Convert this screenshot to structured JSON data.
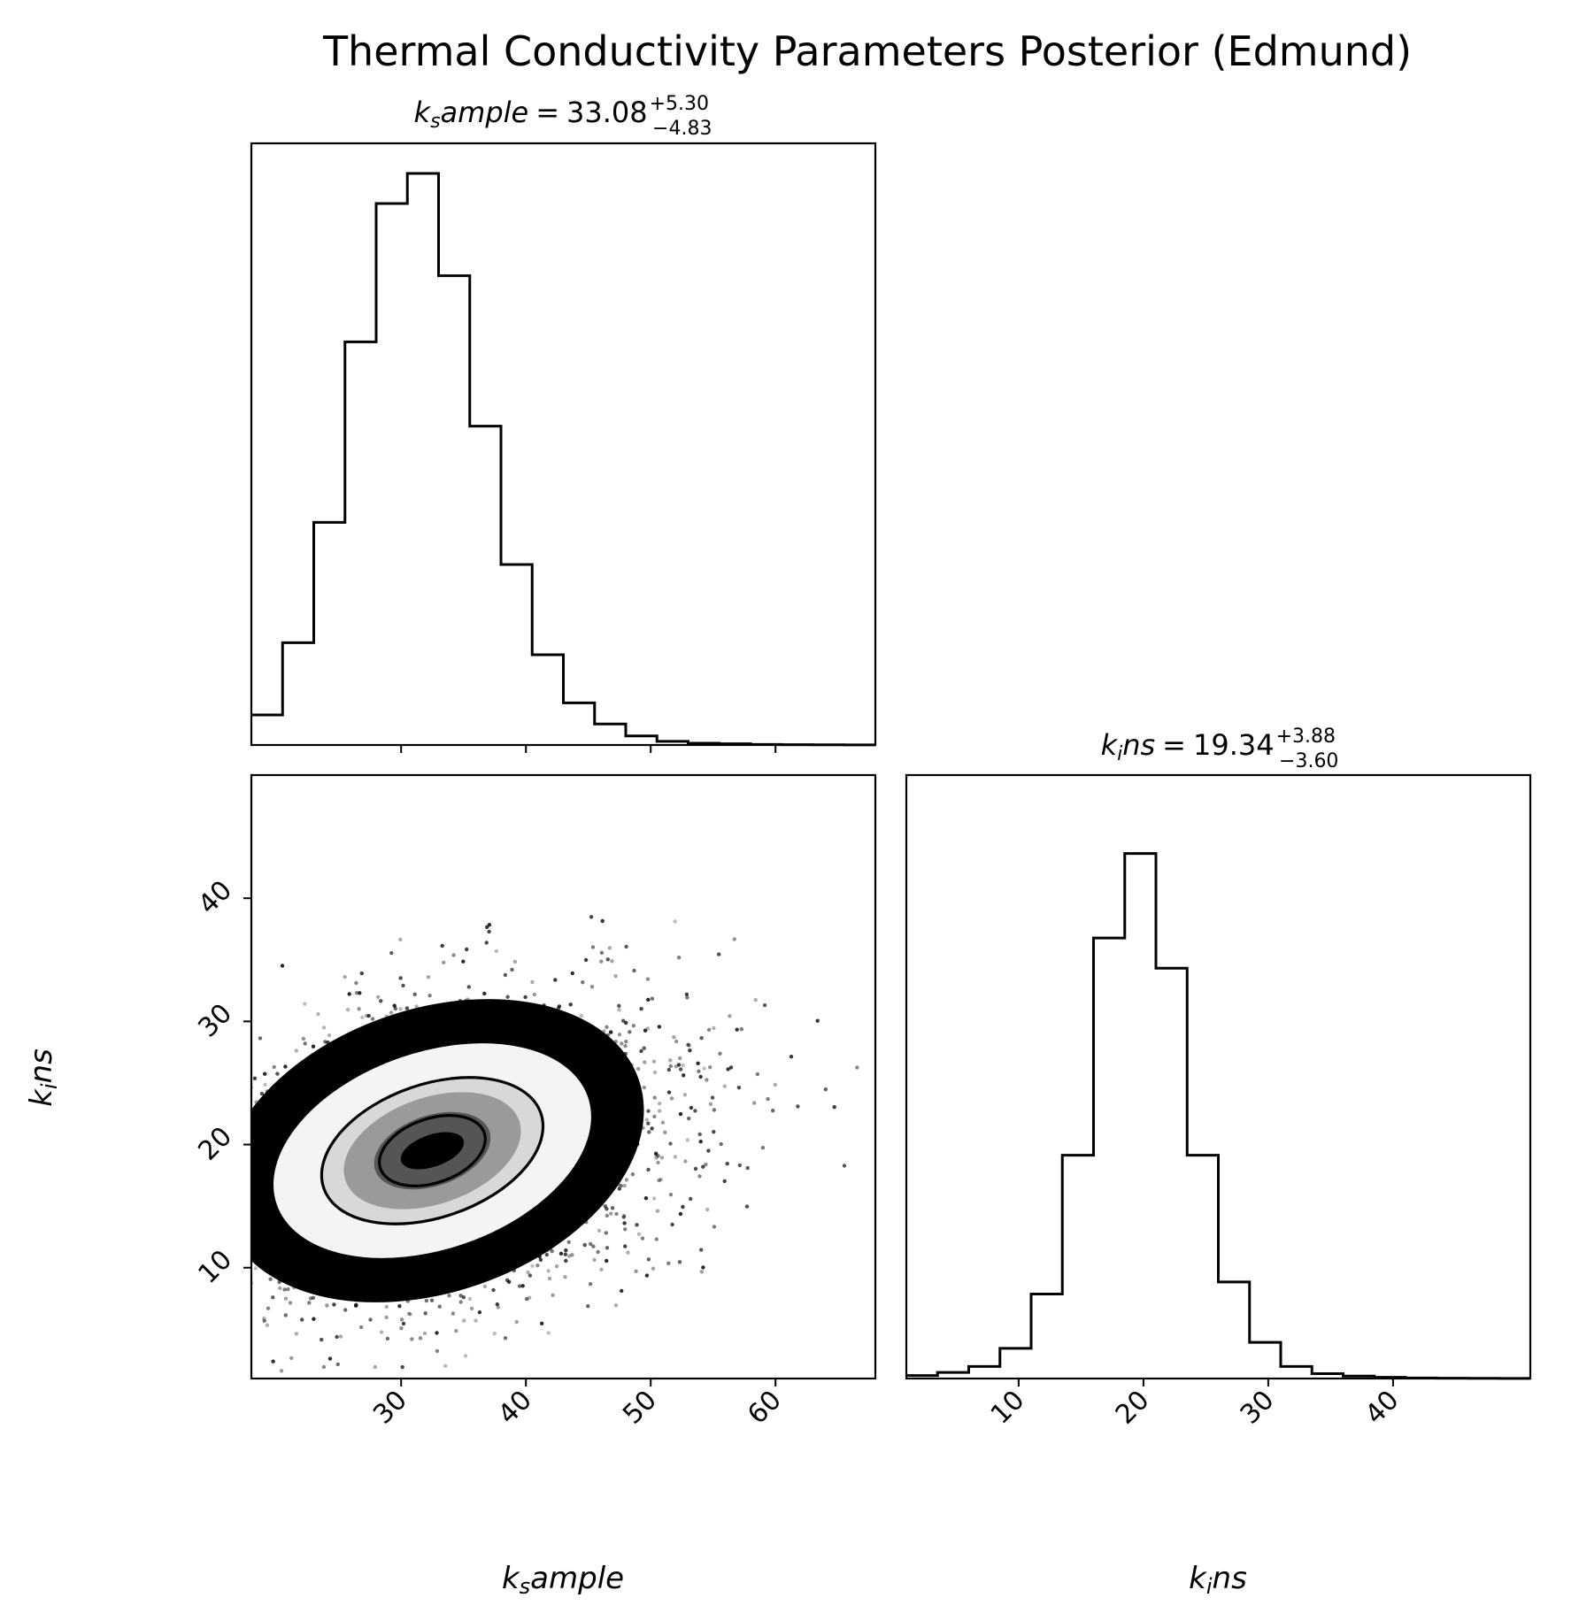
{
  "figure": {
    "title": "Thermal Conductivity Parameters Posterior (Edmund)"
  },
  "chart_data": [
    {
      "type": "bar",
      "panel": "histogram",
      "parameter": "k_sample",
      "title": {
        "main": "k",
        "sub": "s",
        "rest": "ample",
        "equals": "=",
        "value": "33.08",
        "plus": "+5.30",
        "minus": "−4.83"
      },
      "bin_edges": [
        18.0,
        20.5,
        23.0,
        25.5,
        28.0,
        30.5,
        33.0,
        35.5,
        38.0,
        40.5,
        43.0,
        45.5,
        48.0,
        50.5,
        53.0,
        55.5,
        58.0,
        60.5,
        63.0,
        65.5,
        68.0
      ],
      "counts": [
        5,
        17,
        37,
        67,
        90,
        95,
        78,
        53,
        30,
        15,
        7,
        3.5,
        1.5,
        0.6,
        0.3,
        0.2,
        0.1,
        0.05,
        0.03,
        0.02
      ],
      "xlim": [
        18.0,
        68.0
      ],
      "ylim": [
        0,
        100
      ],
      "xticks": [
        30,
        40,
        50,
        60
      ]
    },
    {
      "type": "scatter",
      "panel": "2d-density",
      "parameters": [
        "k_sample",
        "k_ins"
      ],
      "xlabel": {
        "main": "k",
        "sub": "s",
        "rest": "ample"
      },
      "ylabel": {
        "main": "k",
        "sub": "i",
        "rest": "ns"
      },
      "xlim": [
        18.0,
        68.0
      ],
      "ylim": [
        1.0,
        50.0
      ],
      "xticks": [
        "30",
        "40",
        "50",
        "60"
      ],
      "yticks": [
        "10",
        "20",
        "30",
        "40"
      ],
      "peak": [
        32.5,
        19.5
      ],
      "contour_levels_sigma": [
        0.5,
        1.0,
        1.5
      ],
      "contour_radii": [
        [
          4.4,
          2.6
        ],
        [
          9.2,
          5.4
        ],
        [
          13.3,
          8.1
        ]
      ],
      "contour_tilt": [
        1.0,
        0.35
      ],
      "colors": {
        "dense": "#000000",
        "mid": "#555555",
        "light": "#d8d8d8"
      }
    },
    {
      "type": "bar",
      "panel": "histogram",
      "parameter": "k_ins",
      "title": {
        "main": "k",
        "sub": "i",
        "rest": "ns",
        "equals": "=",
        "value": "19.34",
        "plus": "+3.88",
        "minus": "−3.60"
      },
      "bin_edges": [
        1.0,
        3.5,
        6.0,
        8.5,
        11.0,
        13.5,
        16.0,
        18.5,
        21.0,
        23.5,
        26.0,
        28.5,
        31.0,
        33.5,
        36.0,
        38.5,
        41.0,
        43.5,
        46.0,
        48.5,
        51.0
      ],
      "counts": [
        0.5,
        1,
        2,
        5,
        14,
        37,
        73,
        87,
        68,
        37,
        16,
        6,
        2,
        0.8,
        0.4,
        0.2,
        0.1,
        0.05,
        0.03,
        0.02
      ],
      "xlim": [
        1.0,
        51.0
      ],
      "ylim": [
        0,
        100
      ],
      "xticks": [
        "10",
        "20",
        "30",
        "40"
      ]
    }
  ]
}
